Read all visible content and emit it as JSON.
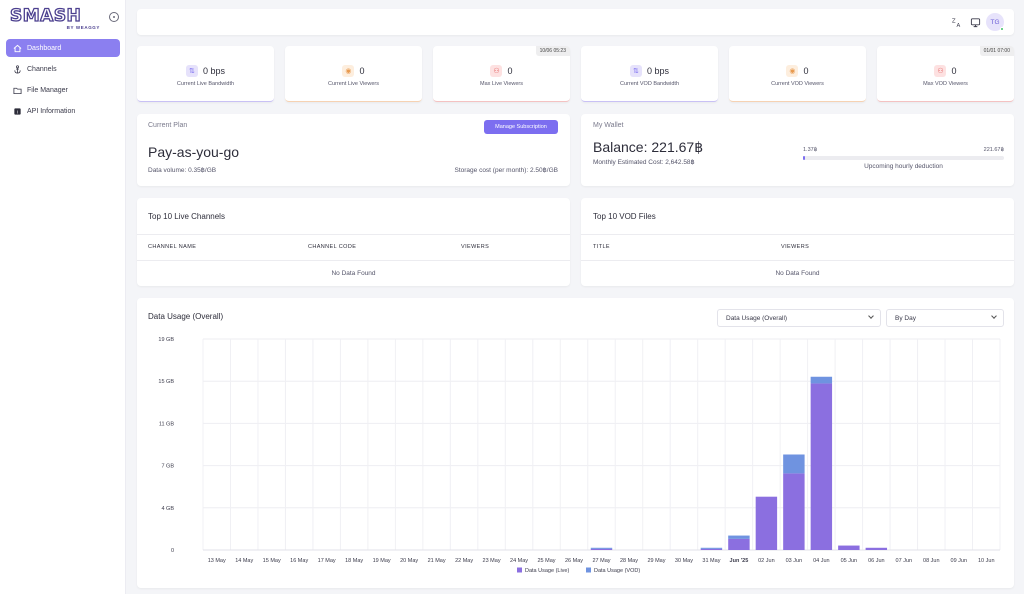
{
  "brand": {
    "logo_text": "SMASH",
    "logo_sub": "BY WEAGGY"
  },
  "sidebar": {
    "items": [
      {
        "label": "Dashboard",
        "icon": "home-icon",
        "active": true
      },
      {
        "label": "Channels",
        "icon": "anchor-icon",
        "active": false
      },
      {
        "label": "File Manager",
        "icon": "folder-icon",
        "active": false
      },
      {
        "label": "API Information",
        "icon": "api-icon",
        "active": false
      }
    ]
  },
  "topbar": {
    "avatar_initials": "TG",
    "icons": [
      "translate-icon",
      "monitor-icon"
    ]
  },
  "stats": [
    {
      "value": "0 bps",
      "label": "Current Live Bandwidth",
      "icon": "transfer-icon",
      "timestamp": ""
    },
    {
      "value": "0",
      "label": "Current Live Viewers",
      "icon": "eye-icon",
      "timestamp": ""
    },
    {
      "value": "0",
      "label": "Max Live Viewers",
      "icon": "users-icon",
      "timestamp": "10/06 05:23"
    },
    {
      "value": "0 bps",
      "label": "Current VOD Bandwidth",
      "icon": "transfer-icon",
      "timestamp": ""
    },
    {
      "value": "0",
      "label": "Current VOD Viewers",
      "icon": "eye-icon",
      "timestamp": ""
    },
    {
      "value": "0",
      "label": "Max VOD Viewers",
      "icon": "users-icon",
      "timestamp": "01/01 07:00"
    }
  ],
  "plan": {
    "caption": "Current Plan",
    "name": "Pay-as-you-go",
    "manage_label": "Manage Subscription",
    "data_volume": "Data volume: 0.35฿/GB",
    "storage_cost": "Storage cost (per month): 2.50฿/GB"
  },
  "wallet": {
    "caption": "My Wallet",
    "balance": "Balance: 221.67฿",
    "monthly_cost": "Monthly Estimated Cost: 2,642.58฿",
    "bar_min": "1.37฿",
    "bar_max": "221.67฿",
    "bar_caption": "Upcoming hourly deduction",
    "bar_fraction": 0.006
  },
  "live_channels": {
    "title": "Top 10 Live Channels",
    "columns": [
      "CHANNEL NAME",
      "CHANNEL CODE",
      "VIEWERS"
    ],
    "empty": "No Data Found"
  },
  "vod_files": {
    "title": "Top 10 VOD Files",
    "columns": [
      "TITLE",
      "VIEWERS"
    ],
    "empty": "No Data Found"
  },
  "usage": {
    "title": "Data Usage (Overall)",
    "select_metric": "Data Usage (Overall)",
    "select_period": "By Day"
  },
  "chart_data": {
    "type": "bar",
    "stacked": true,
    "categories": [
      "13 May",
      "14 May",
      "15 May",
      "16 May",
      "17 May",
      "18 May",
      "19 May",
      "20 May",
      "21 May",
      "22 May",
      "23 May",
      "24 May",
      "25 May",
      "26 May",
      "27 May",
      "28 May",
      "29 May",
      "30 May",
      "31 May",
      "Jun '25",
      "02 Jun",
      "03 Jun",
      "04 Jun",
      "05 Jun",
      "06 Jun",
      "07 Jun",
      "08 Jun",
      "09 Jun",
      "10 Jun"
    ],
    "series": [
      {
        "name": "Data Usage (Live)",
        "color": "#8b6fe0",
        "values": [
          0,
          0,
          0,
          0,
          0,
          0,
          0,
          0,
          0,
          0,
          0,
          0,
          0,
          0,
          0.1,
          0,
          0,
          0,
          0.1,
          1.0,
          4.8,
          6.9,
          15.0,
          0.4,
          0.2,
          0,
          0,
          0,
          0
        ]
      },
      {
        "name": "Data Usage (VOD)",
        "color": "#6f93e0",
        "values": [
          0,
          0,
          0,
          0,
          0,
          0,
          0,
          0,
          0,
          0,
          0,
          0,
          0,
          0,
          0.1,
          0,
          0,
          0,
          0.1,
          0.3,
          0,
          1.7,
          0.6,
          0,
          0,
          0,
          0,
          0,
          0
        ]
      }
    ],
    "yticks": [
      "0",
      "4 GB",
      "7 GB",
      "11 GB",
      "15 GB",
      "19 GB"
    ],
    "ylim": [
      0,
      19
    ],
    "grid": true,
    "legend": "bottom-center"
  }
}
